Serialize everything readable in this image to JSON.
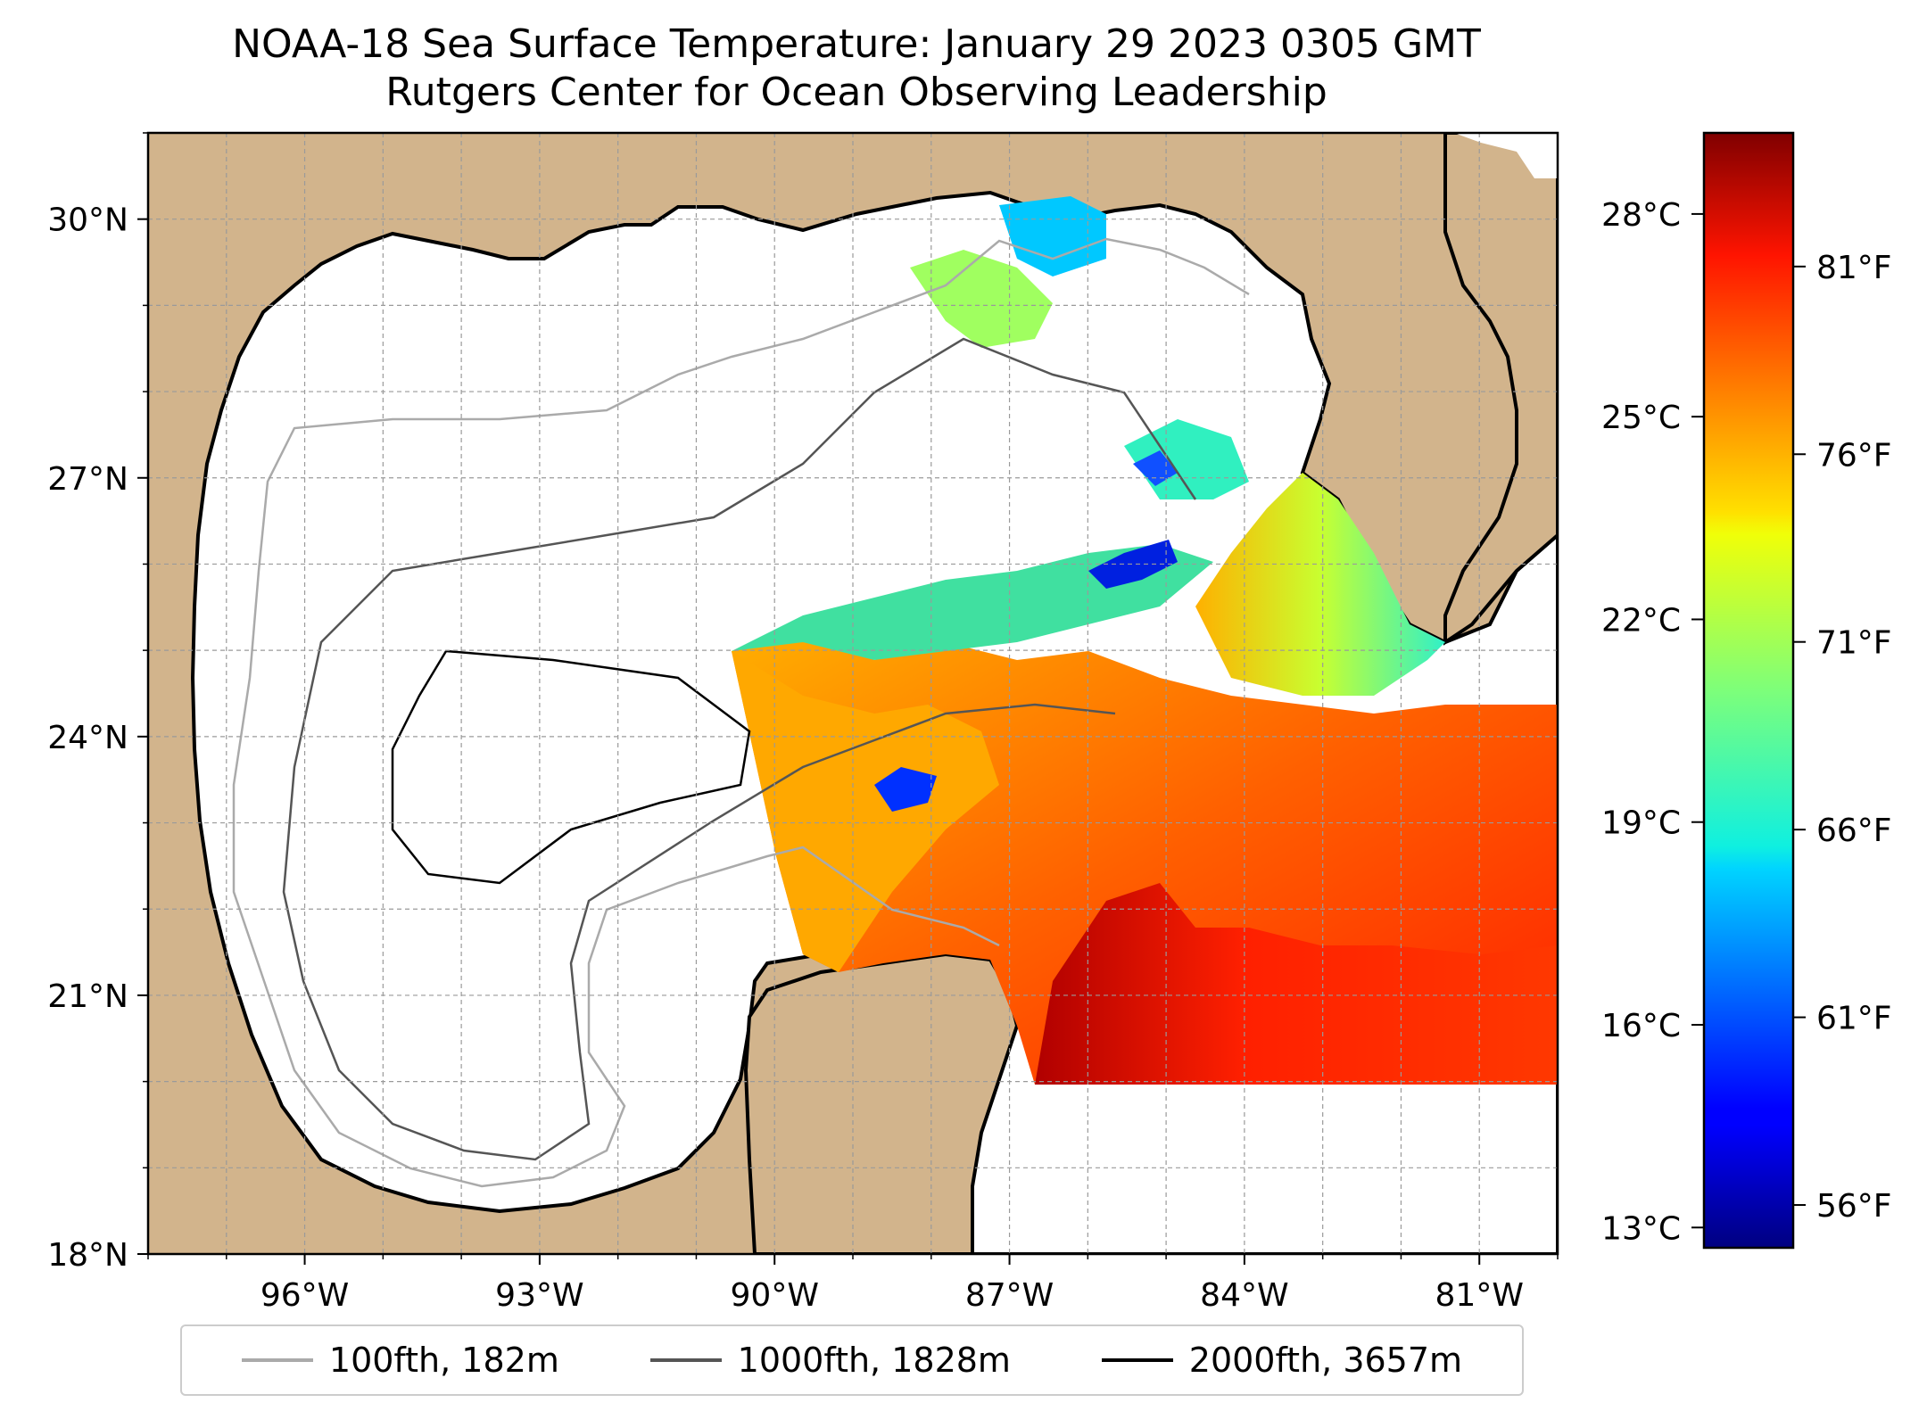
{
  "title": {
    "line1": "NOAA-18 Sea Surface Temperature: January 29 2023 0305 GMT",
    "line2": "Rutgers Center for Ocean Observing Leadership"
  },
  "map": {
    "lon_range": [
      -98,
      -80
    ],
    "lat_range": [
      18,
      31
    ],
    "lon_ticks": [
      "96°W",
      "93°W",
      "90°W",
      "87°W",
      "84°W",
      "81°W"
    ],
    "lon_tick_values": [
      -96,
      -93,
      -90,
      -87,
      -84,
      -81
    ],
    "lat_ticks": [
      "30°N",
      "27°N",
      "24°N",
      "21°N",
      "18°N"
    ],
    "lat_tick_values": [
      30,
      27,
      24,
      21,
      18
    ],
    "land_color": "#d2b48c",
    "water_color": "#ffffff",
    "inland_water_color": "#9dbbe0",
    "grid": true
  },
  "colorbar": {
    "colormap": "jet",
    "range_c": [
      12.7,
      29.2
    ],
    "celsius_labels": [
      "28°C",
      "25°C",
      "22°C",
      "19°C",
      "16°C",
      "13°C"
    ],
    "celsius_values": [
      28,
      25,
      22,
      19,
      16,
      13
    ],
    "fahrenheit_labels": [
      "81°F",
      "76°F",
      "71°F",
      "66°F",
      "61°F",
      "56°F"
    ],
    "fahrenheit_values": [
      81,
      76,
      71,
      66,
      61,
      56
    ]
  },
  "legend": {
    "items": [
      {
        "label": "100fth, 182m",
        "color": "#aaaaaa"
      },
      {
        "label": "1000fth, 1828m",
        "color": "#555555"
      },
      {
        "label": "2000fth, 3657m",
        "color": "#000000"
      }
    ]
  }
}
